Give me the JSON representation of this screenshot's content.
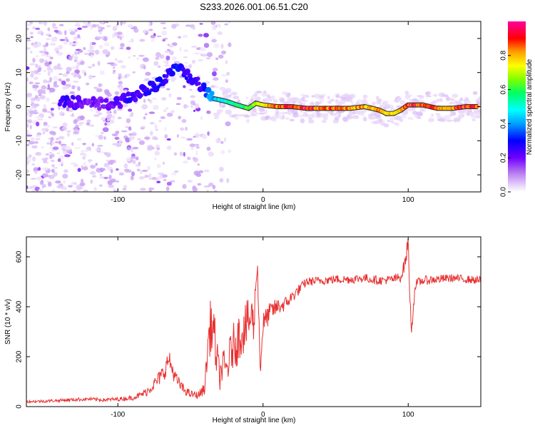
{
  "figure_title": "S233.2026.001.06.51.C20",
  "chart_data": [
    {
      "type": "heatmap",
      "title": "",
      "xlabel": "Height of straight line (km)",
      "ylabel": "Frequency (Hz)",
      "xlim": [
        -163,
        150
      ],
      "ylim": [
        -25,
        25
      ],
      "xticks": [
        -100,
        0,
        100
      ],
      "yticks": [
        -20,
        -10,
        0,
        10,
        20
      ],
      "grid": false,
      "description_of_data": "spectral amplitude vs height and frequency",
      "ridge": {
        "x": [
          -135,
          -120,
          -105,
          -95,
          -85,
          -75,
          -65,
          -58,
          -50,
          -42,
          -36,
          -30,
          -25,
          -18,
          -10,
          -5,
          0,
          10,
          20,
          30,
          40,
          50,
          60,
          70,
          80,
          85,
          90,
          95,
          100,
          110,
          120,
          130,
          140,
          148
        ],
        "y": [
          1.5,
          1.0,
          0.5,
          2.0,
          4.0,
          6.0,
          9.5,
          12.0,
          8.0,
          6.0,
          2.5,
          2.0,
          1.5,
          0.5,
          -0.5,
          1.0,
          0.5,
          0.0,
          0.0,
          -0.5,
          -0.5,
          -0.5,
          -0.5,
          0.0,
          -1.0,
          -2.0,
          -2.0,
          -1.0,
          0.5,
          0.5,
          -0.5,
          -0.5,
          0.0,
          0.0
        ],
        "amplitude": [
          0.3,
          0.25,
          0.25,
          0.3,
          0.3,
          0.35,
          0.3,
          0.35,
          0.3,
          0.3,
          0.45,
          0.5,
          0.55,
          0.6,
          0.65,
          0.7,
          0.8,
          0.9,
          0.95,
          0.95,
          0.9,
          0.9,
          0.9,
          0.85,
          0.9,
          0.85,
          0.8,
          0.85,
          0.95,
          0.95,
          0.9,
          0.9,
          0.95,
          0.95
        ]
      },
      "colorbar": {
        "label": "Normalized spectral amplitude",
        "range": [
          0.0,
          1.0
        ],
        "ticks": [
          0.0,
          0.2,
          0.4,
          0.6,
          0.8
        ],
        "tick_labels": [
          "0.0",
          "0.2",
          "0.4",
          "0.6",
          "0.8"
        ],
        "colors": [
          "#ffffff",
          "#e0c8f8",
          "#b070f0",
          "#7000ff",
          "#0000ff",
          "#00a0ff",
          "#00ffff",
          "#00ff60",
          "#80ff00",
          "#ffff00",
          "#ffa000",
          "#ff0000",
          "#ff00a0"
        ]
      }
    },
    {
      "type": "line",
      "title": "",
      "xlabel": "Height of straight line (km)",
      "ylabel": "SNR (10 * v/v)",
      "xlim": [
        -163,
        150
      ],
      "ylim": [
        0,
        680
      ],
      "xticks": [
        -100,
        0,
        100
      ],
      "yticks": [
        0,
        200,
        400,
        600
      ],
      "grid": false,
      "series": [
        {
          "name": "SNR",
          "color": "#e83030",
          "x": [
            -163,
            -150,
            -140,
            -130,
            -120,
            -110,
            -100,
            -90,
            -85,
            -80,
            -75,
            -72,
            -68,
            -65,
            -60,
            -55,
            -50,
            -45,
            -42,
            -40,
            -38,
            -36,
            -34,
            -32,
            -30,
            -28,
            -25,
            -22,
            -20,
            -18,
            -15,
            -12,
            -10,
            -8,
            -6,
            -5,
            -4,
            -3,
            -2,
            0,
            5,
            10,
            15,
            20,
            25,
            30,
            40,
            50,
            60,
            70,
            80,
            90,
            95,
            98,
            100,
            102,
            105,
            110,
            120,
            130,
            140,
            150
          ],
          "y": [
            20,
            22,
            25,
            28,
            30,
            27,
            30,
            35,
            45,
            60,
            90,
            110,
            140,
            190,
            110,
            70,
            50,
            45,
            60,
            80,
            250,
            330,
            300,
            200,
            120,
            160,
            150,
            220,
            250,
            260,
            300,
            320,
            340,
            360,
            330,
            500,
            580,
            400,
            150,
            330,
            380,
            400,
            410,
            440,
            470,
            500,
            505,
            510,
            510,
            515,
            505,
            510,
            520,
            580,
            660,
            300,
            490,
            505,
            510,
            515,
            510,
            505
          ],
          "noise": [
            5,
            6,
            6,
            7,
            7,
            7,
            8,
            10,
            12,
            18,
            25,
            30,
            35,
            40,
            30,
            20,
            15,
            15,
            20,
            30,
            90,
            110,
            110,
            90,
            60,
            70,
            70,
            90,
            90,
            100,
            100,
            100,
            90,
            90,
            90,
            60,
            40,
            60,
            60,
            50,
            40,
            35,
            30,
            25,
            22,
            18,
            18,
            18,
            18,
            18,
            18,
            18,
            20,
            30,
            40,
            40,
            20,
            18,
            18,
            16,
            16,
            16
          ]
        }
      ]
    }
  ]
}
